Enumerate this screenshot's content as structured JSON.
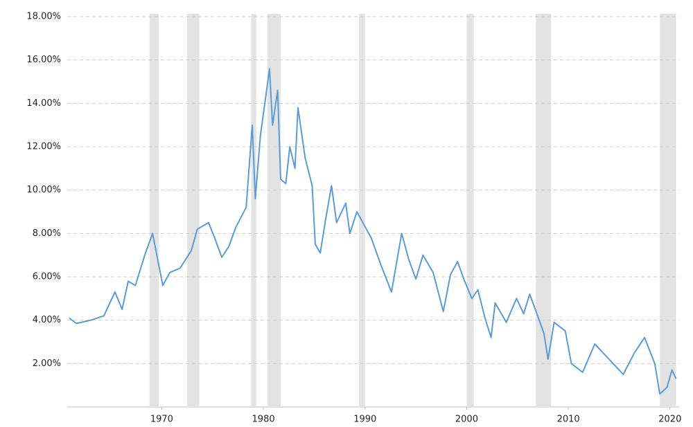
{
  "chart_data": {
    "type": "line",
    "x": [
      1960.9,
      1961.6,
      1963.0,
      1964.3,
      1965.4,
      1966.1,
      1966.7,
      1967.4,
      1968.4,
      1969.1,
      1970.1,
      1970.8,
      1971.8,
      1972.9,
      1973.5,
      1974.6,
      1975.2,
      1975.9,
      1976.6,
      1977.3,
      1978.3,
      1978.9,
      1979.2,
      1979.7,
      1980.2,
      1980.6,
      1980.9,
      1981.4,
      1981.7,
      1982.2,
      1982.6,
      1983.1,
      1983.4,
      1984.1,
      1984.8,
      1985.1,
      1985.6,
      1986.1,
      1986.7,
      1987.2,
      1988.1,
      1988.5,
      1989.2,
      1989.9,
      1990.6,
      1991.6,
      1992.6,
      1993.6,
      1994.3,
      1995.0,
      1995.7,
      1996.7,
      1997.7,
      1998.4,
      1999.1,
      1999.8,
      2000.5,
      2001.1,
      2001.8,
      2002.4,
      2002.8,
      2003.9,
      2004.9,
      2005.6,
      2006.2,
      2006.9,
      2007.6,
      2008.0,
      2008.6,
      2009.7,
      2010.3,
      2011.4,
      2012.6,
      2013.4,
      2014.4,
      2015.4,
      2016.5,
      2017.5,
      2018.5,
      2019.0,
      2019.7,
      2020.2,
      2020.6
    ],
    "series": [
      {
        "color": "#5b9bd5",
        "values": [
          4.1,
          3.85,
          4.0,
          4.2,
          5.3,
          4.5,
          5.8,
          5.6,
          7.1,
          8.0,
          5.6,
          6.2,
          6.4,
          7.2,
          8.2,
          8.5,
          7.8,
          6.9,
          7.4,
          8.3,
          9.2,
          13.0,
          9.6,
          12.5,
          14.2,
          15.6,
          13.0,
          14.6,
          10.5,
          10.3,
          12.0,
          11.0,
          13.8,
          11.5,
          10.2,
          7.5,
          7.1,
          8.6,
          10.2,
          8.5,
          9.4,
          8.0,
          9.0,
          8.4,
          7.8,
          6.5,
          5.3,
          8.0,
          6.8,
          5.9,
          7.0,
          6.2,
          4.4,
          6.1,
          6.7,
          5.8,
          5.0,
          5.4,
          4.1,
          3.2,
          4.8,
          3.9,
          5.0,
          4.3,
          5.2,
          4.3,
          3.4,
          2.2,
          3.9,
          3.5,
          2.0,
          1.6,
          2.9,
          2.5,
          2.0,
          1.5,
          2.5,
          3.2,
          2.0,
          0.6,
          0.9,
          1.7,
          1.3
        ]
      }
    ],
    "recessions": [
      [
        1968.8,
        1969.7
      ],
      [
        1972.5,
        1973.7
      ],
      [
        1978.8,
        1979.3
      ],
      [
        1980.4,
        1981.7
      ],
      [
        1989.4,
        1990.0
      ],
      [
        2000.0,
        2000.7
      ],
      [
        2006.8,
        2008.3
      ],
      [
        2019.0,
        2020.6
      ]
    ],
    "recession_color": "#e3e3e3",
    "xlim": [
      1960.7,
      2020.9
    ],
    "xticks": [
      1970,
      1980,
      1990,
      2000,
      2010,
      2020
    ],
    "ylim": [
      0,
      18
    ],
    "yticks": [
      {
        "value": 2,
        "label": "2.00%"
      },
      {
        "value": 4,
        "label": "4.00%"
      },
      {
        "value": 6,
        "label": "6.00%"
      },
      {
        "value": 8,
        "label": "8.00%"
      },
      {
        "value": 10,
        "label": "10.00%"
      },
      {
        "value": 12,
        "label": "12.00%"
      },
      {
        "value": 14,
        "label": "14.00%"
      },
      {
        "value": 16,
        "label": "16.00%"
      },
      {
        "value": 18,
        "label": "18.00%"
      }
    ],
    "grid": true
  }
}
